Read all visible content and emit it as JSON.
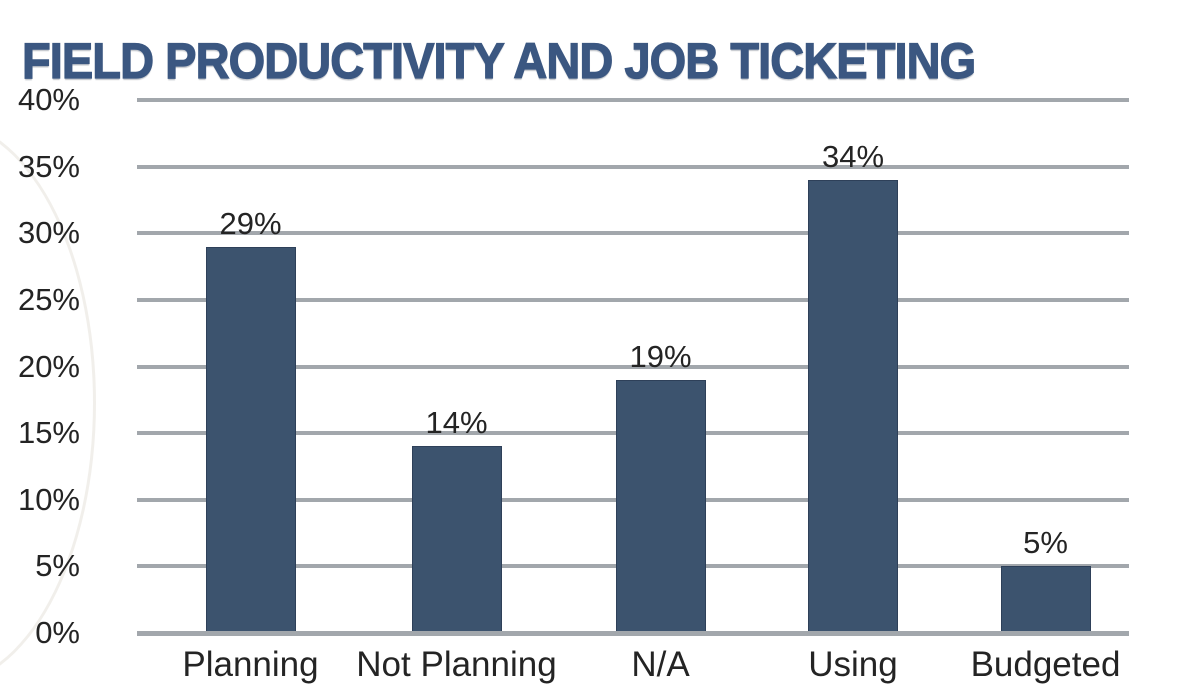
{
  "page": {
    "title": "FIELD PRODUCTIVITY AND JOB TICKETING"
  },
  "chart_data": {
    "type": "bar",
    "orientation": "vertical",
    "title": "FIELD PRODUCTIVITY AND JOB TICKETING",
    "categories": [
      "Planning",
      "Not Planning",
      "N/A",
      "Using",
      "Budgeted"
    ],
    "values": [
      29,
      14,
      19,
      34,
      5
    ],
    "data_labels": [
      "29%",
      "14%",
      "19%",
      "34%",
      "5%"
    ],
    "xlabel": "",
    "ylabel": "",
    "ylim": [
      0,
      40
    ],
    "ytick_values": [
      0,
      5,
      10,
      15,
      20,
      25,
      30,
      35,
      40
    ],
    "ytick_labels": [
      "0%",
      "5%",
      "10%",
      "15%",
      "20%",
      "25%",
      "30%",
      "35%",
      "40%"
    ],
    "grid": "horizontal",
    "legend": "none"
  },
  "colors": {
    "title": "#3b5781",
    "bar": "#3c536e",
    "gridline": "#a2a7ac",
    "axis_line": "#a2a7ac",
    "label_text": "#242424"
  }
}
